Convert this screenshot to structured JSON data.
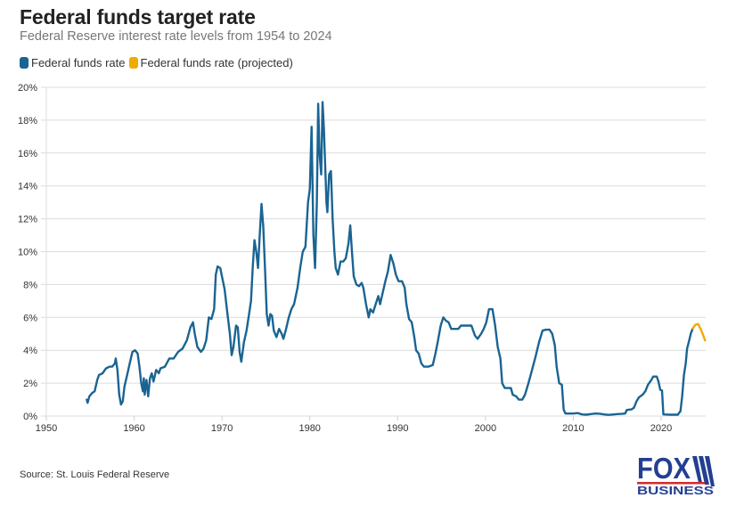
{
  "header": {
    "title": "Federal funds target rate",
    "subtitle": "Federal Reserve interest rate levels from 1954 to 2024"
  },
  "legend": [
    {
      "label": "Federal funds rate",
      "color": "#1a6493"
    },
    {
      "label": "Federal funds rate (projected)",
      "color": "#f0ab00"
    }
  ],
  "footer": {
    "source": "Source: St. Louis Federal Reserve",
    "logo_top": "FOX",
    "logo_bottom": "BUSINESS",
    "logo_color": "#233f93",
    "logo_stripe_color": "#d52b2b"
  },
  "chart_data": {
    "type": "line",
    "title": "Federal funds target rate",
    "subtitle": "Federal Reserve interest rate levels from 1954 to 2024",
    "xlabel": "",
    "ylabel": "",
    "xlim": [
      1950,
      2025
    ],
    "ylim": [
      0,
      20
    ],
    "grid": true,
    "legend_position": "top-left",
    "x_ticks": [
      "1950",
      "1960",
      "1970",
      "1980",
      "1990",
      "2000",
      "2010",
      "2020"
    ],
    "x_tick_values": [
      1950,
      1960,
      1970,
      1980,
      1990,
      2000,
      2010,
      2020
    ],
    "y_ticks": [
      "0%",
      "2%",
      "4%",
      "6%",
      "8%",
      "10%",
      "12%",
      "14%",
      "16%",
      "18%",
      "20%"
    ],
    "y_tick_values": [
      0,
      2,
      4,
      6,
      8,
      10,
      12,
      14,
      16,
      18,
      20
    ],
    "series": [
      {
        "name": "Federal funds rate",
        "color": "#1a6493",
        "points": [
          [
            1954.6,
            1.0
          ],
          [
            1954.7,
            0.8
          ],
          [
            1954.9,
            1.2
          ],
          [
            1955.2,
            1.4
          ],
          [
            1955.5,
            1.5
          ],
          [
            1955.8,
            2.2
          ],
          [
            1956.0,
            2.5
          ],
          [
            1956.4,
            2.6
          ],
          [
            1956.8,
            2.9
          ],
          [
            1957.2,
            3.0
          ],
          [
            1957.5,
            3.0
          ],
          [
            1957.8,
            3.2
          ],
          [
            1957.9,
            3.5
          ],
          [
            1958.1,
            2.8
          ],
          [
            1958.3,
            1.3
          ],
          [
            1958.5,
            0.7
          ],
          [
            1958.7,
            0.9
          ],
          [
            1958.9,
            1.8
          ],
          [
            1959.2,
            2.5
          ],
          [
            1959.5,
            3.2
          ],
          [
            1959.8,
            3.9
          ],
          [
            1960.1,
            4.0
          ],
          [
            1960.4,
            3.8
          ],
          [
            1960.6,
            3.0
          ],
          [
            1960.8,
            2.0
          ],
          [
            1961.0,
            1.5
          ],
          [
            1961.1,
            2.3
          ],
          [
            1961.2,
            1.3
          ],
          [
            1961.4,
            2.2
          ],
          [
            1961.6,
            1.2
          ],
          [
            1961.8,
            2.3
          ],
          [
            1962.0,
            2.6
          ],
          [
            1962.2,
            2.1
          ],
          [
            1962.5,
            2.8
          ],
          [
            1962.8,
            2.6
          ],
          [
            1963.0,
            2.9
          ],
          [
            1963.5,
            3.0
          ],
          [
            1964.0,
            3.5
          ],
          [
            1964.5,
            3.5
          ],
          [
            1965.0,
            3.9
          ],
          [
            1965.5,
            4.1
          ],
          [
            1966.0,
            4.6
          ],
          [
            1966.4,
            5.4
          ],
          [
            1966.7,
            5.7
          ],
          [
            1966.9,
            5.0
          ],
          [
            1967.2,
            4.2
          ],
          [
            1967.6,
            3.9
          ],
          [
            1967.9,
            4.1
          ],
          [
            1968.2,
            4.6
          ],
          [
            1968.5,
            6.0
          ],
          [
            1968.8,
            5.9
          ],
          [
            1969.1,
            6.5
          ],
          [
            1969.3,
            8.6
          ],
          [
            1969.5,
            9.1
          ],
          [
            1969.8,
            9.0
          ],
          [
            1970.0,
            8.5
          ],
          [
            1970.3,
            7.7
          ],
          [
            1970.6,
            6.3
          ],
          [
            1970.9,
            5.0
          ],
          [
            1971.1,
            3.7
          ],
          [
            1971.3,
            4.2
          ],
          [
            1971.6,
            5.5
          ],
          [
            1971.8,
            5.4
          ],
          [
            1972.0,
            3.9
          ],
          [
            1972.2,
            3.3
          ],
          [
            1972.5,
            4.5
          ],
          [
            1972.8,
            5.2
          ],
          [
            1973.0,
            5.9
          ],
          [
            1973.3,
            7.0
          ],
          [
            1973.5,
            9.0
          ],
          [
            1973.7,
            10.7
          ],
          [
            1973.9,
            10.0
          ],
          [
            1974.1,
            9.0
          ],
          [
            1974.3,
            11.0
          ],
          [
            1974.5,
            12.9
          ],
          [
            1974.7,
            11.5
          ],
          [
            1974.9,
            9.0
          ],
          [
            1975.1,
            6.2
          ],
          [
            1975.3,
            5.5
          ],
          [
            1975.5,
            6.2
          ],
          [
            1975.7,
            6.1
          ],
          [
            1975.9,
            5.2
          ],
          [
            1976.2,
            4.8
          ],
          [
            1976.5,
            5.3
          ],
          [
            1976.8,
            5.0
          ],
          [
            1977.0,
            4.7
          ],
          [
            1977.3,
            5.3
          ],
          [
            1977.6,
            6.0
          ],
          [
            1977.9,
            6.5
          ],
          [
            1978.2,
            6.8
          ],
          [
            1978.6,
            7.8
          ],
          [
            1978.9,
            9.0
          ],
          [
            1979.2,
            10.0
          ],
          [
            1979.5,
            10.3
          ],
          [
            1979.8,
            13.0
          ],
          [
            1980.0,
            13.8
          ],
          [
            1980.2,
            17.6
          ],
          [
            1980.4,
            11.0
          ],
          [
            1980.6,
            9.0
          ],
          [
            1980.8,
            13.0
          ],
          [
            1980.95,
            19.0
          ],
          [
            1981.1,
            16.0
          ],
          [
            1981.3,
            14.7
          ],
          [
            1981.45,
            19.1
          ],
          [
            1981.6,
            17.5
          ],
          [
            1981.9,
            13.0
          ],
          [
            1982.0,
            12.4
          ],
          [
            1982.2,
            14.7
          ],
          [
            1982.4,
            14.9
          ],
          [
            1982.6,
            12.0
          ],
          [
            1982.8,
            10.0
          ],
          [
            1982.95,
            9.0
          ],
          [
            1983.2,
            8.6
          ],
          [
            1983.5,
            9.4
          ],
          [
            1983.8,
            9.4
          ],
          [
            1984.1,
            9.6
          ],
          [
            1984.4,
            10.5
          ],
          [
            1984.6,
            11.6
          ],
          [
            1984.8,
            10.0
          ],
          [
            1985.0,
            8.5
          ],
          [
            1985.3,
            8.0
          ],
          [
            1985.6,
            7.9
          ],
          [
            1985.9,
            8.1
          ],
          [
            1986.1,
            7.8
          ],
          [
            1986.4,
            6.8
          ],
          [
            1986.7,
            6.0
          ],
          [
            1986.9,
            6.5
          ],
          [
            1987.2,
            6.3
          ],
          [
            1987.5,
            6.8
          ],
          [
            1987.8,
            7.3
          ],
          [
            1988.0,
            6.8
          ],
          [
            1988.3,
            7.5
          ],
          [
            1988.6,
            8.2
          ],
          [
            1988.9,
            8.8
          ],
          [
            1989.2,
            9.8
          ],
          [
            1989.5,
            9.3
          ],
          [
            1989.8,
            8.6
          ],
          [
            1990.1,
            8.2
          ],
          [
            1990.5,
            8.2
          ],
          [
            1990.8,
            7.8
          ],
          [
            1991.0,
            6.8
          ],
          [
            1991.3,
            5.9
          ],
          [
            1991.6,
            5.7
          ],
          [
            1991.9,
            4.8
          ],
          [
            1992.1,
            4.0
          ],
          [
            1992.4,
            3.8
          ],
          [
            1992.7,
            3.2
          ],
          [
            1993.0,
            3.0
          ],
          [
            1993.5,
            3.0
          ],
          [
            1994.0,
            3.1
          ],
          [
            1994.3,
            3.8
          ],
          [
            1994.6,
            4.6
          ],
          [
            1994.9,
            5.5
          ],
          [
            1995.2,
            6.0
          ],
          [
            1995.5,
            5.8
          ],
          [
            1995.8,
            5.7
          ],
          [
            1996.1,
            5.3
          ],
          [
            1996.5,
            5.3
          ],
          [
            1996.9,
            5.3
          ],
          [
            1997.2,
            5.5
          ],
          [
            1997.6,
            5.5
          ],
          [
            1998.0,
            5.5
          ],
          [
            1998.4,
            5.5
          ],
          [
            1998.8,
            4.9
          ],
          [
            1999.1,
            4.7
          ],
          [
            1999.5,
            5.0
          ],
          [
            1999.8,
            5.3
          ],
          [
            2000.1,
            5.7
          ],
          [
            2000.4,
            6.5
          ],
          [
            2000.8,
            6.5
          ],
          [
            2001.1,
            5.5
          ],
          [
            2001.4,
            4.2
          ],
          [
            2001.7,
            3.5
          ],
          [
            2001.9,
            2.0
          ],
          [
            2002.2,
            1.7
          ],
          [
            2002.6,
            1.7
          ],
          [
            2002.9,
            1.7
          ],
          [
            2003.1,
            1.3
          ],
          [
            2003.5,
            1.2
          ],
          [
            2003.8,
            1.0
          ],
          [
            2004.2,
            1.0
          ],
          [
            2004.5,
            1.3
          ],
          [
            2004.9,
            2.0
          ],
          [
            2005.3,
            2.8
          ],
          [
            2005.7,
            3.6
          ],
          [
            2006.1,
            4.5
          ],
          [
            2006.5,
            5.2
          ],
          [
            2006.9,
            5.25
          ],
          [
            2007.3,
            5.25
          ],
          [
            2007.6,
            5.0
          ],
          [
            2007.9,
            4.3
          ],
          [
            2008.1,
            3.0
          ],
          [
            2008.4,
            2.0
          ],
          [
            2008.7,
            1.9
          ],
          [
            2008.9,
            0.4
          ],
          [
            2009.1,
            0.15
          ],
          [
            2009.6,
            0.15
          ],
          [
            2010.0,
            0.15
          ],
          [
            2010.5,
            0.18
          ],
          [
            2011.0,
            0.1
          ],
          [
            2011.5,
            0.08
          ],
          [
            2012.0,
            0.12
          ],
          [
            2012.5,
            0.15
          ],
          [
            2013.0,
            0.14
          ],
          [
            2013.5,
            0.1
          ],
          [
            2014.0,
            0.07
          ],
          [
            2014.5,
            0.09
          ],
          [
            2015.0,
            0.12
          ],
          [
            2015.5,
            0.13
          ],
          [
            2015.9,
            0.15
          ],
          [
            2016.1,
            0.37
          ],
          [
            2016.6,
            0.4
          ],
          [
            2016.9,
            0.5
          ],
          [
            2017.2,
            0.9
          ],
          [
            2017.5,
            1.15
          ],
          [
            2017.9,
            1.3
          ],
          [
            2018.2,
            1.5
          ],
          [
            2018.5,
            1.9
          ],
          [
            2018.9,
            2.2
          ],
          [
            2019.1,
            2.4
          ],
          [
            2019.5,
            2.4
          ],
          [
            2019.7,
            2.1
          ],
          [
            2019.9,
            1.6
          ],
          [
            2020.1,
            1.55
          ],
          [
            2020.25,
            0.1
          ],
          [
            2020.6,
            0.09
          ],
          [
            2021.0,
            0.08
          ],
          [
            2021.5,
            0.08
          ],
          [
            2021.9,
            0.08
          ],
          [
            2022.2,
            0.3
          ],
          [
            2022.4,
            1.2
          ],
          [
            2022.6,
            2.5
          ],
          [
            2022.8,
            3.2
          ],
          [
            2022.95,
            4.1
          ],
          [
            2023.2,
            4.6
          ],
          [
            2023.4,
            5.05
          ],
          [
            2023.6,
            5.33
          ]
        ]
      },
      {
        "name": "Federal funds rate (projected)",
        "color": "#f0ab00",
        "points": [
          [
            2023.6,
            5.33
          ],
          [
            2023.9,
            5.55
          ],
          [
            2024.2,
            5.6
          ],
          [
            2024.5,
            5.3
          ],
          [
            2024.8,
            4.9
          ],
          [
            2025.0,
            4.6
          ]
        ]
      }
    ]
  }
}
